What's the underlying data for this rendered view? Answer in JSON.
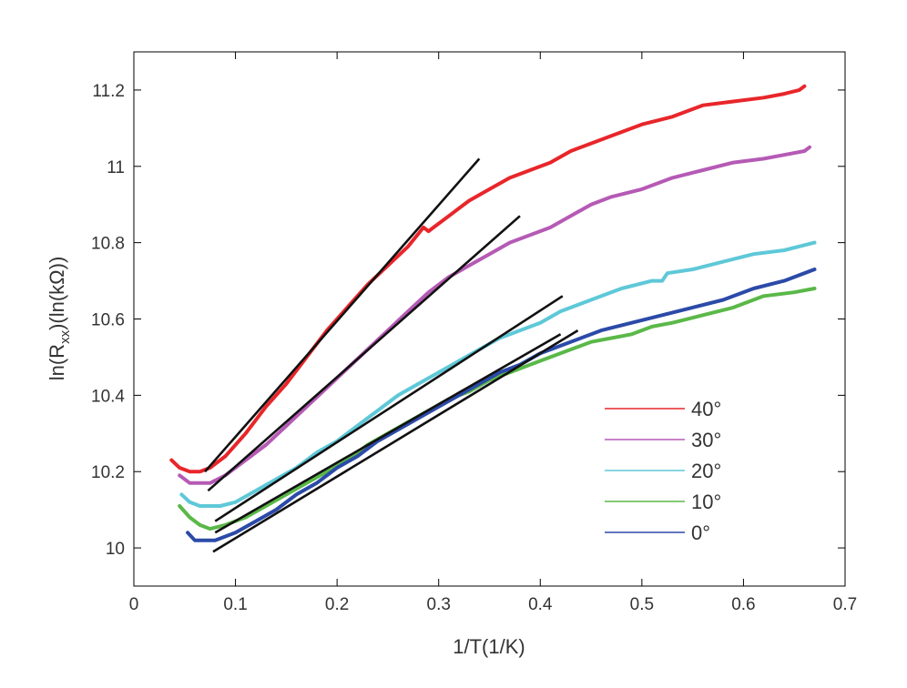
{
  "chart_data": {
    "type": "line",
    "xlabel": "1/T(1/K)",
    "ylabel": "ln(R",
    "ylabel_sub": "xx",
    "ylabel_tail": ")(ln(kΩ))",
    "xlim": [
      0,
      0.7
    ],
    "ylim": [
      9.9,
      11.3
    ],
    "xticks": [
      0,
      0.1,
      0.2,
      0.3,
      0.4,
      0.5,
      0.6,
      0.7
    ],
    "xtick_labels": [
      "0",
      "0.1",
      "0.2",
      "0.3",
      "0.4",
      "0.5",
      "0.6",
      "0.7"
    ],
    "yticks": [
      10,
      10.2,
      10.4,
      10.6,
      10.8,
      11,
      11.2
    ],
    "ytick_labels": [
      "10",
      "10.2",
      "10.4",
      "10.6",
      "10.8",
      "11",
      "11.2"
    ],
    "legend_position": "lower-right",
    "series": [
      {
        "name": "40°",
        "color": "#e8262a",
        "x": [
          0.037,
          0.045,
          0.055,
          0.065,
          0.075,
          0.09,
          0.11,
          0.13,
          0.15,
          0.17,
          0.19,
          0.21,
          0.23,
          0.25,
          0.27,
          0.285,
          0.29,
          0.295,
          0.31,
          0.33,
          0.35,
          0.37,
          0.39,
          0.41,
          0.43,
          0.45,
          0.47,
          0.5,
          0.53,
          0.56,
          0.59,
          0.62,
          0.64,
          0.655,
          0.66
        ],
        "y": [
          10.23,
          10.21,
          10.2,
          10.2,
          10.21,
          10.24,
          10.3,
          10.37,
          10.43,
          10.5,
          10.57,
          10.63,
          10.69,
          10.74,
          10.79,
          10.84,
          10.83,
          10.84,
          10.87,
          10.91,
          10.94,
          10.97,
          10.99,
          11.01,
          11.04,
          11.06,
          11.08,
          11.11,
          11.13,
          11.16,
          11.17,
          11.18,
          11.19,
          11.2,
          11.21
        ]
      },
      {
        "name": "30°",
        "color": "#b55ab5",
        "x": [
          0.045,
          0.055,
          0.065,
          0.075,
          0.09,
          0.11,
          0.13,
          0.15,
          0.17,
          0.19,
          0.21,
          0.23,
          0.25,
          0.27,
          0.29,
          0.31,
          0.33,
          0.35,
          0.37,
          0.39,
          0.41,
          0.43,
          0.45,
          0.47,
          0.5,
          0.53,
          0.56,
          0.59,
          0.62,
          0.64,
          0.66,
          0.665
        ],
        "y": [
          10.19,
          10.17,
          10.17,
          10.17,
          10.19,
          10.23,
          10.27,
          10.32,
          10.37,
          10.42,
          10.47,
          10.52,
          10.57,
          10.62,
          10.67,
          10.71,
          10.74,
          10.77,
          10.8,
          10.82,
          10.84,
          10.87,
          10.9,
          10.92,
          10.94,
          10.97,
          10.99,
          11.01,
          11.02,
          11.03,
          11.04,
          11.05
        ]
      },
      {
        "name": "20°",
        "color": "#5ec8d8",
        "x": [
          0.047,
          0.055,
          0.065,
          0.075,
          0.085,
          0.1,
          0.12,
          0.14,
          0.16,
          0.18,
          0.2,
          0.22,
          0.24,
          0.26,
          0.28,
          0.3,
          0.32,
          0.34,
          0.36,
          0.38,
          0.4,
          0.42,
          0.45,
          0.48,
          0.51,
          0.52,
          0.525,
          0.55,
          0.58,
          0.61,
          0.64,
          0.67
        ],
        "y": [
          10.14,
          10.12,
          10.11,
          10.11,
          10.11,
          10.12,
          10.15,
          10.18,
          10.21,
          10.25,
          10.28,
          10.32,
          10.36,
          10.4,
          10.43,
          10.46,
          10.49,
          10.52,
          10.55,
          10.57,
          10.59,
          10.62,
          10.65,
          10.68,
          10.7,
          10.7,
          10.72,
          10.73,
          10.75,
          10.77,
          10.78,
          10.8
        ]
      },
      {
        "name": "10°",
        "color": "#5ab848",
        "x": [
          0.045,
          0.055,
          0.065,
          0.075,
          0.09,
          0.11,
          0.13,
          0.15,
          0.17,
          0.19,
          0.21,
          0.23,
          0.25,
          0.27,
          0.29,
          0.31,
          0.33,
          0.35,
          0.37,
          0.39,
          0.41,
          0.43,
          0.45,
          0.47,
          0.49,
          0.51,
          0.53,
          0.56,
          0.59,
          0.62,
          0.65,
          0.67
        ],
        "y": [
          10.11,
          10.08,
          10.06,
          10.05,
          10.06,
          10.08,
          10.11,
          10.14,
          10.17,
          10.2,
          10.23,
          10.27,
          10.3,
          10.33,
          10.36,
          10.39,
          10.41,
          10.44,
          10.46,
          10.48,
          10.5,
          10.52,
          10.54,
          10.55,
          10.56,
          10.58,
          10.59,
          10.61,
          10.63,
          10.66,
          10.67,
          10.68
        ]
      },
      {
        "name": "0°",
        "color": "#2b4aa8",
        "x": [
          0.053,
          0.06,
          0.07,
          0.08,
          0.09,
          0.1,
          0.12,
          0.14,
          0.16,
          0.18,
          0.2,
          0.22,
          0.24,
          0.26,
          0.28,
          0.3,
          0.32,
          0.34,
          0.36,
          0.38,
          0.4,
          0.42,
          0.44,
          0.46,
          0.49,
          0.52,
          0.55,
          0.58,
          0.61,
          0.64,
          0.67
        ],
        "y": [
          10.04,
          10.02,
          10.02,
          10.02,
          10.03,
          10.04,
          10.07,
          10.1,
          10.14,
          10.17,
          10.21,
          10.24,
          10.28,
          10.31,
          10.34,
          10.37,
          10.4,
          10.43,
          10.46,
          10.48,
          10.51,
          10.53,
          10.55,
          10.57,
          10.59,
          10.61,
          10.63,
          10.65,
          10.68,
          10.7,
          10.73
        ]
      }
    ],
    "fit_lines": [
      {
        "x": [
          0.07,
          0.34
        ],
        "y": [
          10.2,
          11.02
        ]
      },
      {
        "x": [
          0.073,
          0.38
        ],
        "y": [
          10.15,
          10.87
        ]
      },
      {
        "x": [
          0.08,
          0.422
        ],
        "y": [
          10.07,
          10.66
        ]
      },
      {
        "x": [
          0.08,
          0.42
        ],
        "y": [
          10.04,
          10.56
        ]
      },
      {
        "x": [
          0.078,
          0.437
        ],
        "y": [
          9.99,
          10.57
        ]
      }
    ]
  }
}
